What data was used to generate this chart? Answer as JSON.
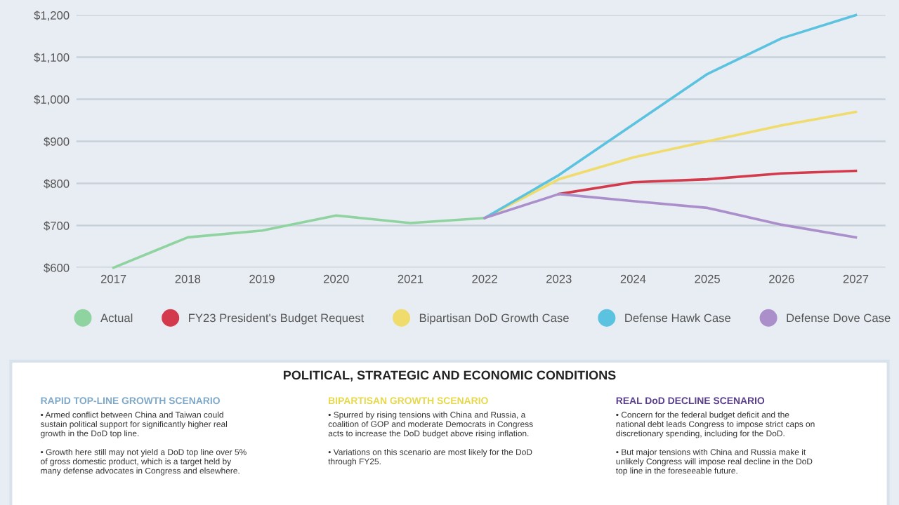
{
  "chart_data": {
    "type": "line",
    "x": [
      2017,
      2018,
      2019,
      2020,
      2021,
      2022,
      2023,
      2024,
      2025,
      2026,
      2027
    ],
    "series": [
      {
        "name": "Actual",
        "color": "#8fd3a0",
        "values": [
          600,
          672,
          688,
          724,
          706,
          718,
          null,
          null,
          null,
          null,
          null
        ]
      },
      {
        "name": "FY23 President's Budget Request",
        "color": "#d33a4c",
        "values": [
          null,
          null,
          null,
          null,
          null,
          null,
          775,
          803,
          810,
          824,
          830
        ]
      },
      {
        "name": "Bipartisan DoD Growth Case",
        "color": "#f0dc6c",
        "values": [
          null,
          null,
          null,
          null,
          null,
          718,
          810,
          862,
          900,
          938,
          970
        ]
      },
      {
        "name": "Defense Hawk Case",
        "color": "#5bc3e0",
        "values": [
          null,
          null,
          null,
          null,
          null,
          718,
          820,
          940,
          1060,
          1145,
          1200
        ]
      },
      {
        "name": "Defense Dove Case",
        "color": "#ab8fcb",
        "values": [
          null,
          null,
          null,
          null,
          null,
          718,
          775,
          758,
          742,
          702,
          672
        ]
      }
    ],
    "xlim": [
      2016.5,
      2027.4
    ],
    "xticks": [
      2017,
      2018,
      2019,
      2020,
      2021,
      2022,
      2023,
      2024,
      2025,
      2026,
      2027
    ],
    "ylim": [
      600,
      1200
    ],
    "yticks": [
      {
        "value": 600,
        "label": "$600"
      },
      {
        "value": 700,
        "label": "$700"
      },
      {
        "value": 800,
        "label": "$800"
      },
      {
        "value": 900,
        "label": "$900"
      },
      {
        "value": 1000,
        "label": "$1,000"
      },
      {
        "value": 1100,
        "label": "$1,100"
      },
      {
        "value": 1200,
        "label": "$1,200"
      }
    ],
    "grid": "y",
    "legend": "bottom",
    "marker": "none",
    "line_style": "solid",
    "annotations": [
      "POLITICAL, STRATEGIC AND ECONOMIC CONDITIONS",
      "RAPID TOP-LINE GROWTH SCENARIO",
      "• Armed conflict between China and Taiwan could\nsustain political support for significantly higher real\ngrowth in the DoD top line.\n\n• Growth here still may not yield a DoD top line over 5%\nof gross domestic product, which is a target held by\nmany defense advocates in Congress and elsewhere.",
      "BIPARTISAN GROWTH SCENARIO",
      "• Spurred by rising tensions with China and Russia, a\ncoalition of GOP and moderate Democrats in Congress\nacts to increase the DoD budget above rising inflation.\n\n• Variations on this scenario are most likely for the DoD\nthrough FY25.",
      "REAL DoD DECLINE SCENARIO",
      "• Concern for the federal budget deficit and the\nnational debt leads Congress to impose strict caps on\ndiscretionary spending, including for the DoD.\n\n• But major tensions with China and Russia make it\nunlikely Congress will impose real decline in the DoD\ntop line in the foreseeable future."
    ]
  }
}
